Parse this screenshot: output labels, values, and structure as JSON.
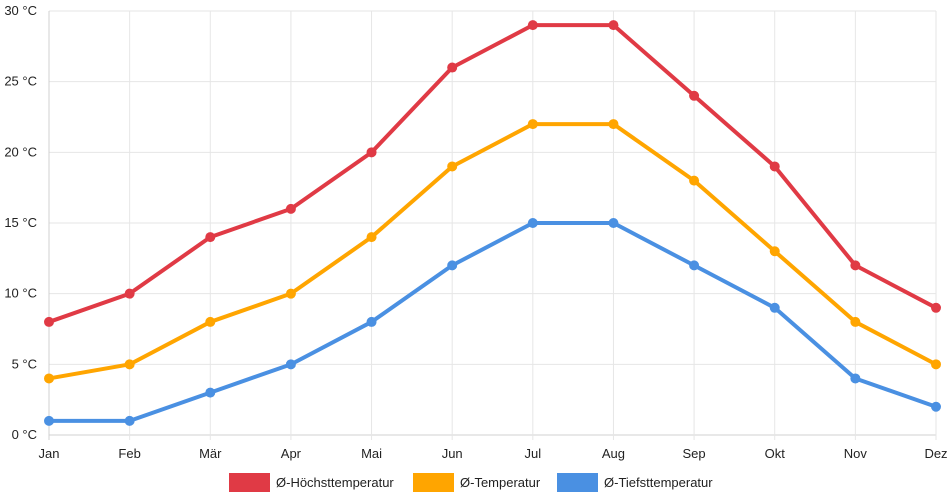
{
  "chart_data": {
    "type": "line",
    "categories": [
      "Jan",
      "Feb",
      "Mär",
      "Apr",
      "Mai",
      "Jun",
      "Jul",
      "Aug",
      "Sep",
      "Okt",
      "Nov",
      "Dez"
    ],
    "yticks": [
      "0 °C",
      "5 °C",
      "10 °C",
      "15 °C",
      "20 °C",
      "25 °C",
      "30 °C"
    ],
    "ylim": [
      0,
      30
    ],
    "grid": true,
    "legend_position": "bottom",
    "series": [
      {
        "name": "Ø-Höchsttemperatur",
        "color": "#e03a45",
        "values": [
          8,
          10,
          14,
          16,
          20,
          26,
          29,
          29,
          24,
          19,
          12,
          9
        ]
      },
      {
        "name": "Ø-Temperatur",
        "color": "#ffa500",
        "values": [
          4,
          5,
          8,
          10,
          14,
          19,
          22,
          22,
          18,
          13,
          8,
          5
        ]
      },
      {
        "name": "Ø-Tiefsttemperatur",
        "color": "#4a90e2",
        "values": [
          1,
          1,
          3,
          5,
          8,
          12,
          15,
          15,
          12,
          9,
          4,
          2
        ]
      }
    ]
  }
}
